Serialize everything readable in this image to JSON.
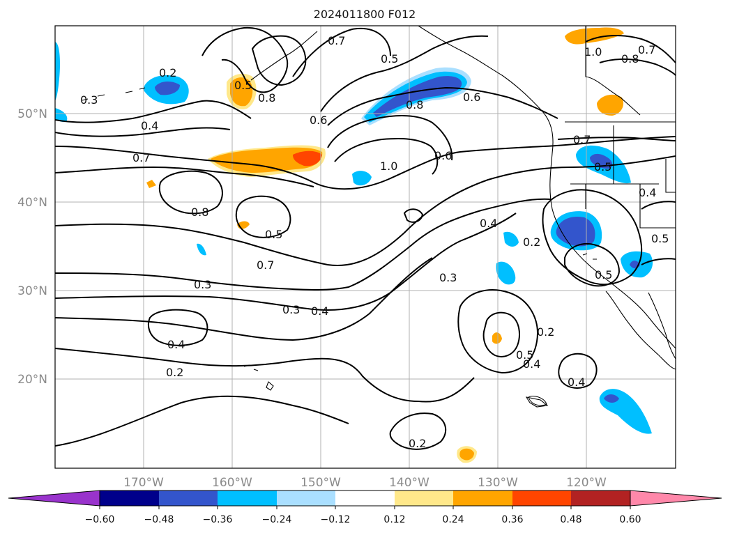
{
  "title": "2024011800 F012",
  "map": {
    "lon_labels": [
      "170°W",
      "160°W",
      "150°W",
      "140°W",
      "130°W",
      "120°W"
    ],
    "lat_labels": [
      "50°N",
      "40°N",
      "30°N",
      "20°N"
    ],
    "contour_labels": {
      "c03a": "0.3",
      "c02a": "0.2",
      "c05a": "0.5",
      "c07a": "0.7",
      "c05b": "0.5",
      "c08a": "0.8",
      "c04a": "0.4",
      "c06a": "0.6",
      "c07b": "0.7",
      "c10a": "1.0",
      "c06b": "0.6",
      "c08b": "0.8",
      "c06c": "0.6",
      "c07c": "0.7",
      "c10b": "1.0",
      "c08c": "0.8",
      "c07d": "0.7",
      "c05c": "0.5",
      "c04b": "0.4",
      "c08d": "0.8",
      "c05d": "0.5",
      "c07e": "0.7",
      "c03b": "0.3",
      "c03c": "0.3",
      "c04c": "0.4",
      "c04d": "0.4",
      "c02b": "0.2",
      "c04e": "0.4",
      "c02c": "0.2",
      "c03d": "0.3",
      "c05e": "0.5",
      "c04f": "0.4",
      "c04g": "0.4",
      "c02d": "0.2",
      "c05f": "0.5",
      "c05g": "0.5",
      "c02e": "0.2"
    }
  },
  "colorbar": {
    "colors": [
      "#9933cc",
      "#00008b",
      "#3355cc",
      "#00bfff",
      "#aadfff",
      "#ffffff",
      "#ffe88a",
      "#ffa500",
      "#ff4500",
      "#b22222",
      "#ff88aa"
    ],
    "tick_labels": [
      "−0.60",
      "−0.48",
      "−0.36",
      "−0.24",
      "−0.12",
      "0.12",
      "0.24",
      "0.36",
      "0.48",
      "0.60"
    ]
  }
}
